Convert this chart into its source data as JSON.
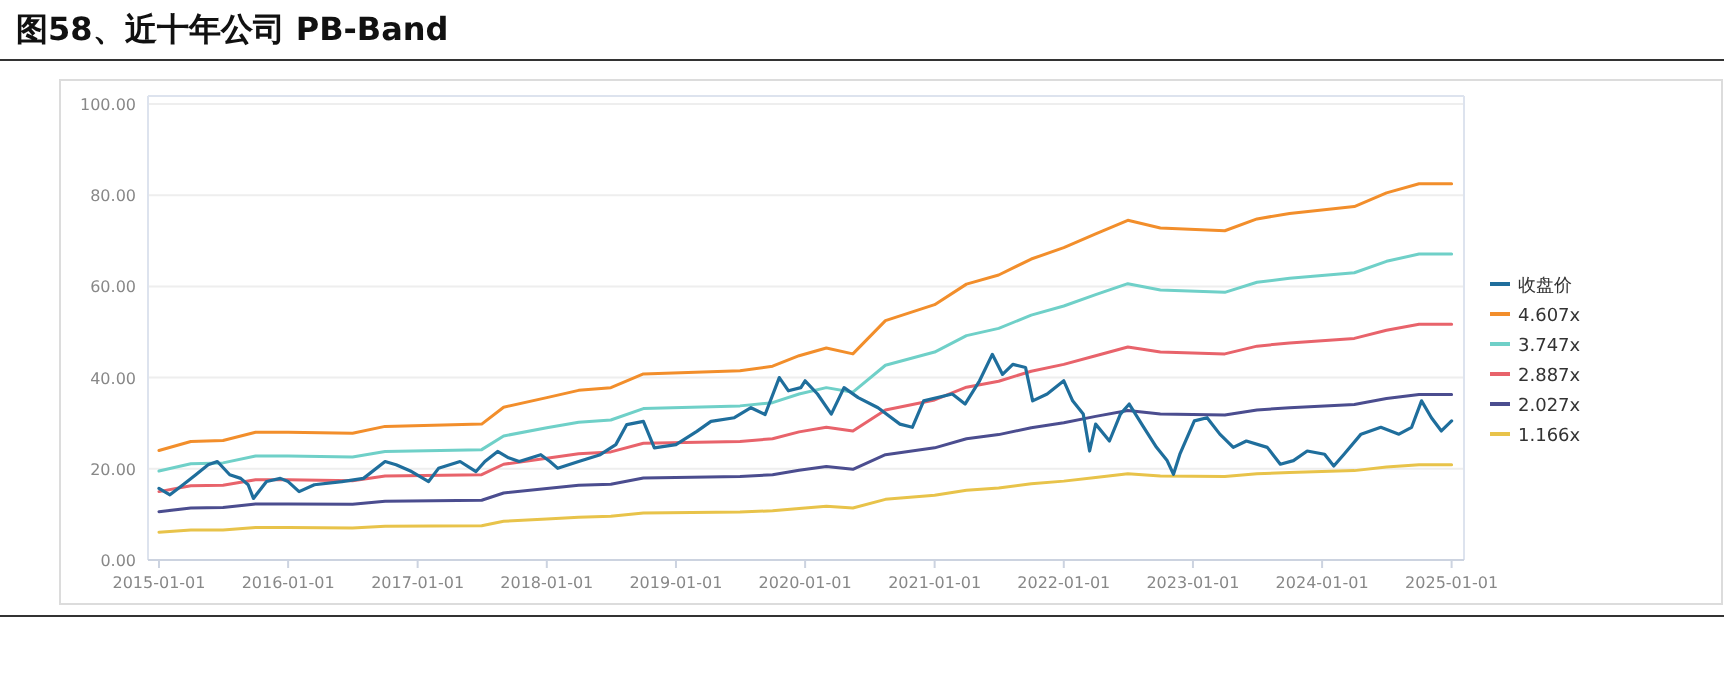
{
  "chart_data": {
    "type": "line",
    "title": "图58、近十年公司 PB-Band",
    "legend": "right",
    "grid": "y",
    "marker": "none",
    "line_style": "solid",
    "xlim": [
      "2014-12-01",
      "2025-02-05"
    ],
    "xticks": [
      {
        "value": "2015-01-01",
        "label": "2015-01-01"
      },
      {
        "value": "2016-01-01",
        "label": "2016-01-01"
      },
      {
        "value": "2017-01-01",
        "label": "2017-01-01"
      },
      {
        "value": "2018-01-01",
        "label": "2018-01-01"
      },
      {
        "value": "2019-01-01",
        "label": "2019-01-01"
      },
      {
        "value": "2020-01-01",
        "label": "2020-01-01"
      },
      {
        "value": "2021-01-01",
        "label": "2021-01-01"
      },
      {
        "value": "2022-01-01",
        "label": "2022-01-01"
      },
      {
        "value": "2023-01-01",
        "label": "2023-01-01"
      },
      {
        "value": "2024-01-01",
        "label": "2024-01-01"
      },
      {
        "value": "2025-01-01",
        "label": "2025-01-01"
      }
    ],
    "ylim": [
      0,
      100
    ],
    "yticks": [
      {
        "value": 0,
        "label": "0.00"
      },
      {
        "value": 20,
        "label": "20.00"
      },
      {
        "value": 40,
        "label": "40.00"
      },
      {
        "value": 60,
        "label": "60.00"
      },
      {
        "value": 80,
        "label": "80.00"
      },
      {
        "value": 100,
        "label": "100.00"
      }
    ],
    "x": [
      "2015-01-01",
      "2015-04-01",
      "2015-07-01",
      "2015-10-01",
      "2016-01-01",
      "2016-07-01",
      "2016-10-01",
      "2017-07-01",
      "2017-09-01",
      "2018-01-01",
      "2018-04-01",
      "2018-07-01",
      "2018-10-01",
      "2019-07-01",
      "2019-10-01",
      "2019-12-15",
      "2020-03-01",
      "2020-05-15",
      "2020-08-15",
      "2021-01-01",
      "2021-04-01",
      "2021-07-01",
      "2021-10-01",
      "2022-01-01",
      "2022-04-01",
      "2022-07-01",
      "2022-10-01",
      "2023-04-01",
      "2023-07-01",
      "2023-10-01",
      "2024-04-01",
      "2024-07-01",
      "2024-10-01",
      "2025-01-01"
    ],
    "series": [
      {
        "name": "收盘价",
        "color": "#1f6e9c",
        "x": [
          "2015-01-01",
          "2015-02-01",
          "2015-03-10",
          "2015-04-15",
          "2015-05-20",
          "2015-06-15",
          "2015-07-20",
          "2015-08-20",
          "2015-09-10",
          "2015-09-25",
          "2015-11-01",
          "2015-12-10",
          "2016-01-01",
          "2016-02-01",
          "2016-03-15",
          "2016-06-01",
          "2016-08-01",
          "2016-10-01",
          "2016-11-01",
          "2016-12-15",
          "2017-02-01",
          "2017-03-01",
          "2017-05-01",
          "2017-06-15",
          "2017-07-10",
          "2017-08-15",
          "2017-09-15",
          "2017-10-15",
          "2017-12-15",
          "2018-01-10",
          "2018-02-01",
          "2018-04-01",
          "2018-06-01",
          "2018-07-15",
          "2018-08-15",
          "2018-10-01",
          "2018-11-01",
          "2019-01-01",
          "2019-03-01",
          "2019-04-10",
          "2019-06-15",
          "2019-08-01",
          "2019-09-10",
          "2019-10-20",
          "2019-11-15",
          "2019-12-20",
          "2020-01-01",
          "2020-02-05",
          "2020-03-15",
          "2020-04-20",
          "2020-05-30",
          "2020-07-25",
          "2020-09-25",
          "2020-10-30",
          "2020-12-01",
          "2021-02-20",
          "2021-03-28",
          "2021-05-08",
          "2021-06-13",
          "2021-07-12",
          "2021-08-10",
          "2021-09-15",
          "2021-10-05",
          "2021-11-15",
          "2022-01-01",
          "2022-01-26",
          "2022-02-25",
          "2022-03-15",
          "2022-04-01",
          "2022-05-10",
          "2022-06-10",
          "2022-07-05",
          "2022-08-15",
          "2022-09-20",
          "2022-10-20",
          "2022-11-07",
          "2022-11-25",
          "2023-01-05",
          "2023-02-10",
          "2023-03-18",
          "2023-04-25",
          "2023-06-01",
          "2023-07-30",
          "2023-09-05",
          "2023-10-12",
          "2023-11-20",
          "2024-01-08",
          "2024-02-03",
          "2024-03-03",
          "2024-04-20",
          "2024-06-15",
          "2024-08-05",
          "2024-09-10",
          "2024-10-08",
          "2024-11-05",
          "2024-12-03",
          "2025-01-01"
        ],
        "values": [
          15.7,
          14.3,
          16.5,
          18.7,
          20.9,
          21.6,
          18.7,
          17.9,
          16.5,
          13.5,
          17.2,
          17.9,
          17.2,
          15.0,
          16.5,
          17.2,
          17.9,
          21.6,
          20.9,
          19.4,
          17.2,
          20.1,
          21.6,
          19.4,
          21.6,
          23.8,
          22.4,
          21.6,
          23.1,
          21.6,
          20.1,
          21.6,
          23.1,
          25.3,
          29.7,
          30.4,
          24.6,
          25.3,
          28.2,
          30.4,
          31.2,
          33.4,
          31.9,
          40.0,
          37.1,
          37.8,
          39.3,
          36.4,
          32.0,
          37.8,
          35.6,
          33.4,
          29.8,
          29.1,
          34.9,
          36.4,
          34.2,
          39.3,
          45.1,
          40.7,
          42.9,
          42.2,
          34.9,
          36.4,
          39.3,
          34.9,
          32.0,
          23.9,
          29.8,
          26.1,
          32.0,
          34.2,
          29.1,
          24.7,
          21.8,
          18.8,
          23.2,
          30.5,
          31.2,
          27.6,
          24.7,
          26.1,
          24.7,
          21.0,
          21.8,
          23.9,
          23.2,
          20.6,
          23.2,
          27.6,
          29.1,
          27.6,
          29.1,
          34.9,
          31.2,
          28.3,
          30.5
        ]
      },
      {
        "name": "4.607x",
        "color": "#f28e2b",
        "values": [
          24,
          26,
          26.2,
          28,
          28,
          27.8,
          29.3,
          29.8,
          33.5,
          35.6,
          37.2,
          37.8,
          40.8,
          41.5,
          42.5,
          44.8,
          46.5,
          45.2,
          52.5,
          56,
          60.5,
          62.5,
          66,
          68.5,
          71.5,
          74.5,
          72.8,
          72.2,
          74.8,
          76,
          77.5,
          80.5,
          82.5,
          82.5
        ]
      },
      {
        "name": "3.747x",
        "color": "#6fd0c8",
        "values": [
          19.5,
          21.1,
          21.3,
          22.8,
          22.8,
          22.6,
          23.8,
          24.2,
          27.2,
          29.0,
          30.2,
          30.7,
          33.2,
          33.8,
          34.5,
          36.4,
          37.8,
          36.8,
          42.7,
          45.6,
          49.2,
          50.8,
          53.7,
          55.7,
          58.2,
          60.6,
          59.2,
          58.7,
          60.9,
          61.8,
          63.0,
          65.5,
          67.1,
          67.1
        ]
      },
      {
        "name": "2.887x",
        "color": "#e8636b",
        "values": [
          15.0,
          16.3,
          16.4,
          17.6,
          17.6,
          17.4,
          18.4,
          18.7,
          21.0,
          22.3,
          23.3,
          23.7,
          25.6,
          26.0,
          26.6,
          28.1,
          29.1,
          28.3,
          32.9,
          35.1,
          37.9,
          39.2,
          41.4,
          42.9,
          44.8,
          46.7,
          45.6,
          45.2,
          46.9,
          47.6,
          48.6,
          50.4,
          51.7,
          51.7
        ]
      },
      {
        "name": "2.027x",
        "color": "#4b4d8f",
        "values": [
          10.6,
          11.4,
          11.5,
          12.3,
          12.3,
          12.2,
          12.9,
          13.1,
          14.7,
          15.7,
          16.4,
          16.6,
          18.0,
          18.3,
          18.7,
          19.7,
          20.5,
          19.9,
          23.1,
          24.6,
          26.6,
          27.5,
          29.0,
          30.1,
          31.5,
          32.8,
          32.0,
          31.8,
          32.9,
          33.4,
          34.1,
          35.4,
          36.3,
          36.3
        ]
      },
      {
        "name": "1.166x",
        "color": "#e8c34a",
        "values": [
          6.1,
          6.6,
          6.6,
          7.1,
          7.1,
          7.0,
          7.4,
          7.5,
          8.5,
          9.0,
          9.4,
          9.6,
          10.3,
          10.5,
          10.8,
          11.3,
          11.8,
          11.4,
          13.3,
          14.2,
          15.3,
          15.8,
          16.7,
          17.3,
          18.1,
          18.9,
          18.4,
          18.3,
          18.9,
          19.2,
          19.6,
          20.4,
          20.9,
          20.9
        ]
      }
    ]
  }
}
